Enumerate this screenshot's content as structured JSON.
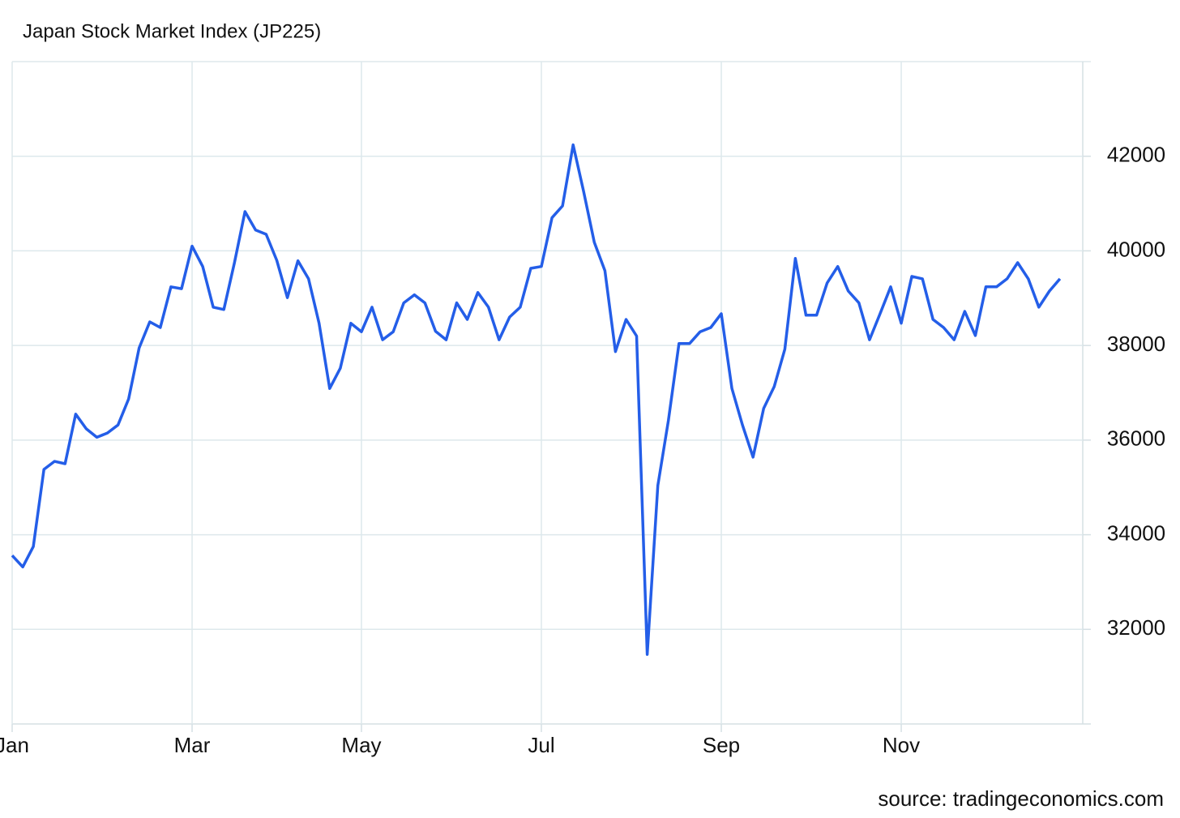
{
  "chart_data": {
    "type": "line",
    "title": "Japan Stock Market Index (JP225)",
    "source": "source: tradingeconomics.com",
    "categories": [
      "Jan",
      null,
      null,
      null,
      null,
      null,
      null,
      null,
      null,
      null,
      null,
      null,
      null,
      null,
      null,
      null,
      null,
      "Mar",
      null,
      null,
      null,
      null,
      null,
      null,
      null,
      null,
      null,
      null,
      null,
      null,
      null,
      null,
      null,
      "May",
      null,
      null,
      null,
      null,
      null,
      null,
      null,
      null,
      null,
      null,
      null,
      null,
      null,
      null,
      null,
      null,
      "Jul",
      null,
      null,
      null,
      null,
      null,
      null,
      null,
      null,
      null,
      null,
      null,
      null,
      null,
      null,
      null,
      null,
      "Sep",
      null,
      null,
      null,
      null,
      null,
      null,
      null,
      null,
      null,
      null,
      null,
      null,
      null,
      null,
      null,
      null,
      "Nov",
      null,
      null,
      null,
      null,
      null,
      null,
      null,
      null,
      null,
      null,
      null,
      null,
      null,
      null,
      null
    ],
    "values": [
      33560,
      33320,
      33750,
      35380,
      35550,
      35500,
      36550,
      36240,
      36060,
      36150,
      36320,
      36870,
      37950,
      38500,
      38380,
      39240,
      39200,
      40100,
      39670,
      38810,
      38760,
      39750,
      40830,
      40440,
      40350,
      39800,
      39010,
      39790,
      39410,
      38470,
      37090,
      37520,
      38470,
      38290,
      38810,
      38120,
      38290,
      38900,
      39070,
      38900,
      38300,
      38120,
      38900,
      38550,
      39120,
      38810,
      38120,
      38600,
      38810,
      39630,
      39670,
      40700,
      40950,
      42240,
      41250,
      40180,
      39580,
      37870,
      38550,
      38200,
      31470,
      35040,
      36410,
      38040,
      38040,
      38290,
      38380,
      38670,
      37090,
      36320,
      35640,
      36670,
      37130,
      37920,
      39840,
      38640,
      38640,
      39320,
      39670,
      39150,
      38900,
      38120,
      38670,
      39240,
      38470,
      39460,
      39410,
      38550,
      38380,
      38120,
      38720,
      38210,
      39240,
      39240,
      39410,
      39750,
      39410,
      38810,
      39150,
      39410
    ],
    "color": "#245ee8",
    "ylim": [
      30000,
      44000
    ],
    "yticks": [
      32000,
      34000,
      36000,
      38000,
      40000,
      42000
    ],
    "grid": true
  }
}
